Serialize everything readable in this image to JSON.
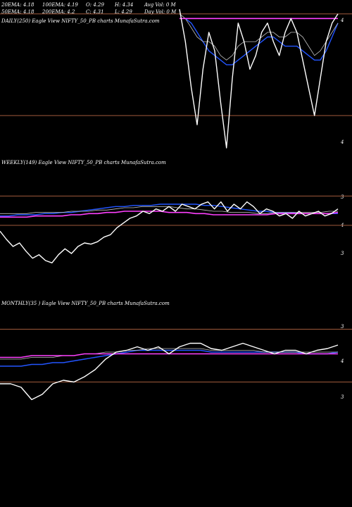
{
  "colors": {
    "background": "#000000",
    "price_line": "#ffffff",
    "ema_20": "#ffffff",
    "ema_100": "#c0c0c0",
    "ema_200": "#2255ff",
    "ma_short": "#ff40ff",
    "guide_line": "#a05a3c",
    "text": "#ffffff"
  },
  "info_rows": [
    [
      "20EMA: 4.18",
      "100EMA: 4.19",
      "O: 4.29",
      "H: 4.34",
      "Avg Vol: 0  M"
    ],
    [
      "50EMA: 4.18",
      "200EMA: 4.2",
      "C: 4.31",
      "L: 4.29",
      "Day Vol: 0  M"
    ]
  ],
  "chart_data": [
    {
      "type": "line",
      "panel_label": "DAILY(250) Eagle  View  NIFTY_50_PB charts MunafaSutra.com",
      "y_tick_labels": [
        "4",
        "4"
      ],
      "series": [
        {
          "color_key": "price_line",
          "values": [
            4.35,
            4.28,
            4.18,
            4.1,
            4.22,
            4.3,
            4.26,
            4.15,
            4.05,
            4.2,
            4.32,
            4.28,
            4.22,
            4.25,
            4.3,
            4.32,
            4.28,
            4.25,
            4.3,
            4.33,
            4.3,
            4.24,
            4.18,
            4.12,
            4.2,
            4.28,
            4.32,
            4.34
          ]
        },
        {
          "color_key": "ema_200",
          "values": [
            4.33,
            4.33,
            4.32,
            4.3,
            4.28,
            4.26,
            4.25,
            4.24,
            4.23,
            4.23,
            4.24,
            4.25,
            4.26,
            4.27,
            4.28,
            4.29,
            4.29,
            4.28,
            4.27,
            4.27,
            4.27,
            4.26,
            4.25,
            4.24,
            4.24,
            4.26,
            4.29,
            4.32
          ]
        },
        {
          "color_key": "ema_100",
          "values": [
            4.34,
            4.33,
            4.31,
            4.29,
            4.28,
            4.28,
            4.27,
            4.25,
            4.24,
            4.25,
            4.27,
            4.28,
            4.28,
            4.28,
            4.29,
            4.3,
            4.3,
            4.29,
            4.29,
            4.3,
            4.3,
            4.29,
            4.27,
            4.25,
            4.26,
            4.28,
            4.3,
            4.32
          ]
        },
        {
          "color_key": "ma_short",
          "values": [
            4.33,
            4.33,
            4.33,
            4.33,
            4.33,
            4.33,
            4.33,
            4.33,
            4.33,
            4.33,
            4.33,
            4.33,
            4.33,
            4.33,
            4.33,
            4.33,
            4.33,
            4.33,
            4.33,
            4.33,
            4.33,
            4.33,
            4.33,
            4.33,
            4.33,
            4.33,
            4.33,
            4.33
          ]
        }
      ],
      "guide_levels": [
        4.34,
        4.12
      ]
    },
    {
      "type": "line",
      "panel_label": "WEEKLY(149) Eagle  View  NIFTY_50_PB charts MunafaSutra.com",
      "y_tick_labels": [
        "3",
        "4",
        "3"
      ],
      "series": [
        {
          "color_key": "price_line",
          "values": [
            4.05,
            3.98,
            3.92,
            3.95,
            3.88,
            3.82,
            3.85,
            3.8,
            3.78,
            3.85,
            3.9,
            3.86,
            3.92,
            3.95,
            3.94,
            3.96,
            4.0,
            4.02,
            4.08,
            4.12,
            4.16,
            4.18,
            4.22,
            4.2,
            4.24,
            4.22,
            4.26,
            4.22,
            4.28,
            4.26,
            4.24,
            4.28,
            4.3,
            4.24,
            4.3,
            4.22,
            4.28,
            4.24,
            4.3,
            4.26,
            4.2,
            4.24,
            4.22,
            4.18,
            4.2,
            4.16,
            4.22,
            4.18,
            4.2,
            4.22,
            4.18,
            4.2,
            4.24
          ]
        },
        {
          "color_key": "ema_200",
          "values": [
            4.18,
            4.18,
            4.19,
            4.19,
            4.19,
            4.2,
            4.2,
            4.21,
            4.21,
            4.22,
            4.23,
            4.24,
            4.25,
            4.26,
            4.26,
            4.27,
            4.27,
            4.27,
            4.28,
            4.28,
            4.28,
            4.28,
            4.28,
            4.27,
            4.27,
            4.26,
            4.25,
            4.24,
            4.23,
            4.22,
            4.22,
            4.21,
            4.21,
            4.21,
            4.2,
            4.2,
            4.2,
            4.2,
            4.2
          ]
        },
        {
          "color_key": "ema_100",
          "values": [
            4.2,
            4.2,
            4.2,
            4.2,
            4.21,
            4.21,
            4.21,
            4.21,
            4.22,
            4.22,
            4.22,
            4.23,
            4.23,
            4.24,
            4.25,
            4.25,
            4.26,
            4.26,
            4.26,
            4.26,
            4.25,
            4.24,
            4.24,
            4.23,
            4.22,
            4.22,
            4.21,
            4.21,
            4.21,
            4.2,
            4.2,
            4.21,
            4.21,
            4.21,
            4.21,
            4.21,
            4.21,
            4.22,
            4.22
          ]
        },
        {
          "color_key": "ma_short",
          "values": [
            4.17,
            4.17,
            4.17,
            4.17,
            4.18,
            4.18,
            4.18,
            4.18,
            4.19,
            4.19,
            4.2,
            4.2,
            4.21,
            4.21,
            4.22,
            4.22,
            4.22,
            4.22,
            4.22,
            4.21,
            4.21,
            4.21,
            4.2,
            4.2,
            4.19,
            4.19,
            4.19,
            4.19,
            4.19,
            4.19,
            4.19,
            4.2,
            4.2,
            4.2,
            4.2,
            4.2,
            4.2,
            4.2,
            4.21
          ]
        }
      ],
      "guide_levels": [
        4.35,
        4.1
      ]
    },
    {
      "type": "line",
      "panel_label": "MONTHLY(35                    ) Eagle  View  NIFTY_50_PB charts MunafaSutra.com",
      "y_tick_labels": [
        "3",
        "4",
        "3"
      ],
      "series": [
        {
          "color_key": "price_line",
          "values": [
            4.04,
            4.04,
            4.02,
            3.95,
            3.98,
            4.04,
            4.06,
            4.05,
            4.08,
            4.12,
            4.18,
            4.22,
            4.23,
            4.25,
            4.23,
            4.25,
            4.21,
            4.25,
            4.27,
            4.27,
            4.24,
            4.23,
            4.25,
            4.27,
            4.25,
            4.23,
            4.21,
            4.23,
            4.23,
            4.21,
            4.23,
            4.24,
            4.26
          ]
        },
        {
          "color_key": "ema_200",
          "values": [
            4.14,
            4.14,
            4.14,
            4.15,
            4.15,
            4.16,
            4.16,
            4.17,
            4.18,
            4.19,
            4.2,
            4.21,
            4.22,
            4.23,
            4.23,
            4.23,
            4.23,
            4.23,
            4.23,
            4.23,
            4.22,
            4.22,
            4.22,
            4.22,
            4.22,
            4.22,
            4.22,
            4.22,
            4.22,
            4.21,
            4.21,
            4.21,
            4.22
          ]
        },
        {
          "color_key": "ema_100",
          "values": [
            4.18,
            4.18,
            4.18,
            4.19,
            4.19,
            4.19,
            4.2,
            4.2,
            4.21,
            4.21,
            4.22,
            4.22,
            4.23,
            4.23,
            4.24,
            4.24,
            4.24,
            4.24,
            4.24,
            4.24,
            4.23,
            4.23,
            4.23,
            4.23,
            4.23,
            4.22,
            4.22,
            4.22,
            4.22,
            4.22,
            4.22,
            4.22,
            4.22
          ]
        },
        {
          "color_key": "ma_short",
          "values": [
            4.19,
            4.19,
            4.19,
            4.2,
            4.2,
            4.2,
            4.2,
            4.2,
            4.21,
            4.21,
            4.21,
            4.21,
            4.21,
            4.21,
            4.21,
            4.21,
            4.21,
            4.21,
            4.21,
            4.21,
            4.21,
            4.21,
            4.21,
            4.21,
            4.21,
            4.21,
            4.21,
            4.21,
            4.21,
            4.21,
            4.21,
            4.21,
            4.21
          ]
        }
      ],
      "guide_levels": [
        4.35,
        4.05
      ]
    }
  ]
}
